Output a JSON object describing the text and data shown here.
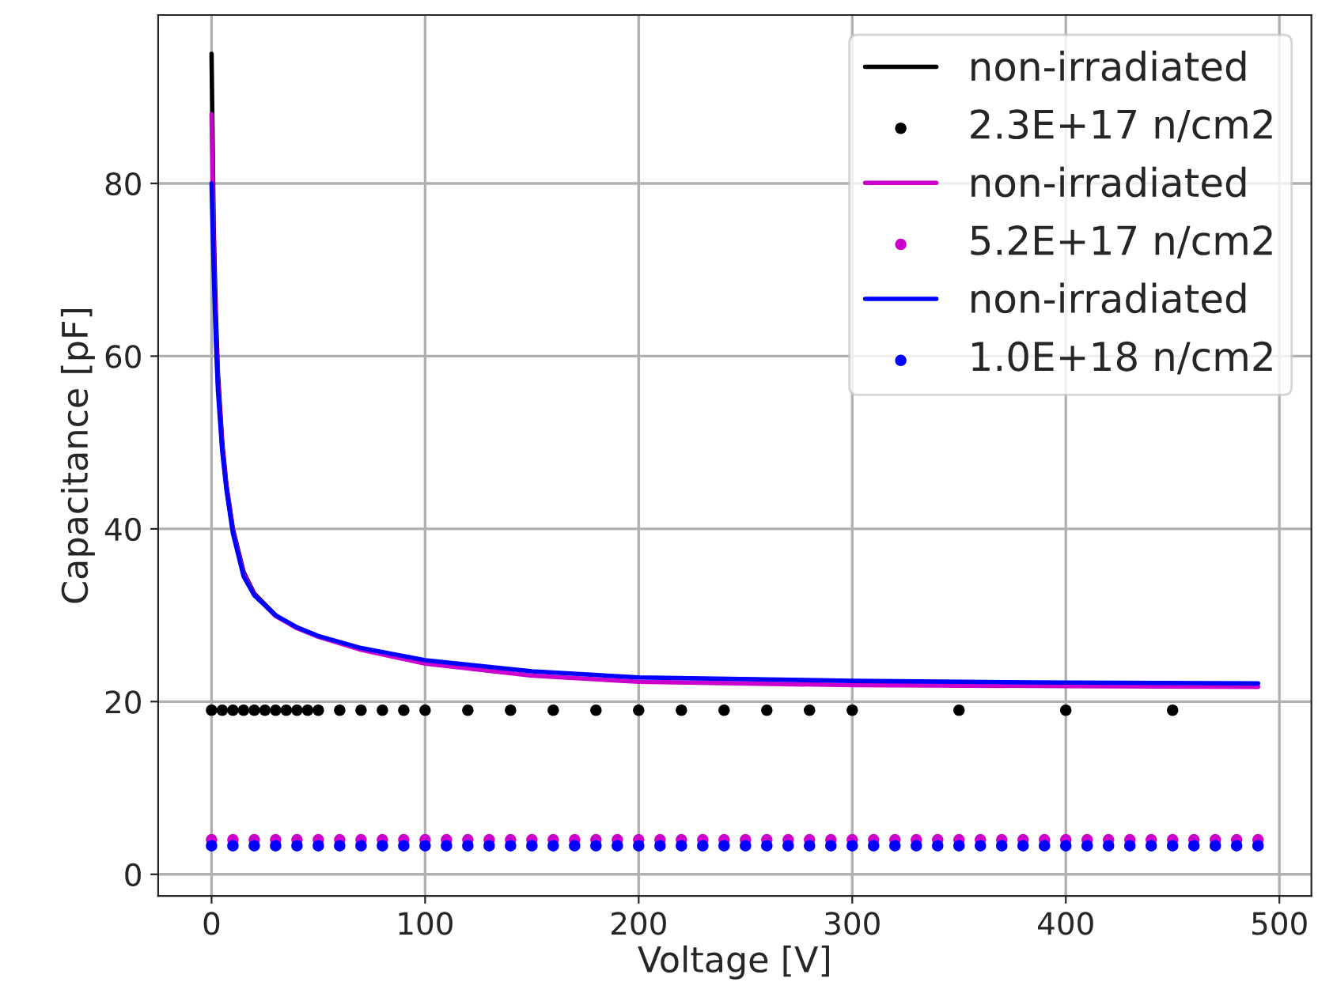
{
  "chart_data": {
    "type": "line",
    "xlabel": "Voltage [V]",
    "ylabel": "Capacitance [pF]",
    "xlim": [
      -25,
      515
    ],
    "ylim": [
      -2.5,
      99.5
    ],
    "xticks": [
      0,
      100,
      200,
      300,
      400,
      500
    ],
    "yticks": [
      0,
      20,
      40,
      60,
      80
    ],
    "grid": true,
    "legend": "top right",
    "series": [
      {
        "name": "non-irradiated",
        "color": "#000000",
        "x": [
          0,
          1,
          2,
          3,
          5,
          7,
          10,
          15,
          20,
          30
        ],
        "values": [
          95,
          75,
          65,
          58,
          50,
          45,
          40,
          35,
          32.5,
          30
        ]
      },
      {
        "name": "2.3E+17 n/cm2",
        "type": "scatter",
        "marker": "circle",
        "color": "#000000",
        "x": [
          0,
          5,
          10,
          15,
          20,
          25,
          30,
          35,
          40,
          45,
          50,
          60,
          70,
          80,
          90,
          100,
          120,
          140,
          160,
          180,
          200,
          220,
          240,
          260,
          280,
          300,
          350,
          400,
          450
        ],
        "values": [
          19,
          19,
          19,
          19,
          19,
          19,
          19,
          19,
          19,
          19,
          19,
          19,
          19,
          19,
          19,
          19,
          19,
          19,
          19,
          19,
          19,
          19,
          19,
          19,
          19,
          19,
          19,
          19,
          19
        ]
      },
      {
        "name": "non-irradiated",
        "color": "#cc00cc",
        "x": [
          0,
          1,
          2,
          3,
          5,
          7,
          10,
          15,
          20,
          30,
          40,
          50,
          70,
          100,
          150,
          200,
          300,
          400,
          490
        ],
        "values": [
          88,
          72,
          63,
          57,
          49.5,
          44.8,
          39.8,
          34.8,
          32.4,
          29.9,
          28.5,
          27.5,
          26,
          24.4,
          23,
          22.3,
          21.9,
          21.8,
          21.7
        ]
      },
      {
        "name": "5.2E+17 n/cm2",
        "type": "scatter",
        "marker": "circle",
        "color": "#cc00cc",
        "x": [
          0,
          10,
          20,
          30,
          40,
          50,
          60,
          70,
          80,
          90,
          100,
          110,
          120,
          130,
          140,
          150,
          160,
          170,
          180,
          190,
          200,
          210,
          220,
          230,
          240,
          250,
          260,
          270,
          280,
          290,
          300,
          310,
          320,
          330,
          340,
          350,
          360,
          370,
          380,
          390,
          400,
          410,
          420,
          430,
          440,
          450,
          460,
          470,
          480,
          490
        ],
        "values": [
          4,
          4,
          4,
          4,
          4,
          4,
          4,
          4,
          4,
          4,
          4,
          4,
          4,
          4,
          4,
          4,
          4,
          4,
          4,
          4,
          4,
          4,
          4,
          4,
          4,
          4,
          4,
          4,
          4,
          4,
          4,
          4,
          4,
          4,
          4,
          4,
          4,
          4,
          4,
          4,
          4,
          4,
          4,
          4,
          4,
          4,
          4,
          4,
          4,
          4
        ]
      },
      {
        "name": "non-irradiated",
        "color": "#0000ff",
        "x": [
          0,
          1,
          2,
          3,
          5,
          7,
          10,
          15,
          20,
          30,
          40,
          50,
          70,
          100,
          150,
          200,
          300,
          400,
          490
        ],
        "values": [
          80,
          70,
          62,
          56,
          49,
          44.5,
          39.5,
          34.5,
          32.3,
          30,
          28.6,
          27.6,
          26.2,
          24.8,
          23.5,
          22.8,
          22.4,
          22.2,
          22.1
        ]
      },
      {
        "name": "1.0E+18 n/cm2",
        "type": "scatter",
        "marker": "circle",
        "color": "#0000ff",
        "x": [
          0,
          10,
          20,
          30,
          40,
          50,
          60,
          70,
          80,
          90,
          100,
          110,
          120,
          130,
          140,
          150,
          160,
          170,
          180,
          190,
          200,
          210,
          220,
          230,
          240,
          250,
          260,
          270,
          280,
          290,
          300,
          310,
          320,
          330,
          340,
          350,
          360,
          370,
          380,
          390,
          400,
          410,
          420,
          430,
          440,
          450,
          460,
          470,
          480,
          490
        ],
        "values": [
          3.3,
          3.3,
          3.3,
          3.3,
          3.3,
          3.3,
          3.3,
          3.3,
          3.3,
          3.3,
          3.3,
          3.3,
          3.3,
          3.3,
          3.3,
          3.3,
          3.3,
          3.3,
          3.3,
          3.3,
          3.3,
          3.3,
          3.3,
          3.3,
          3.3,
          3.3,
          3.3,
          3.3,
          3.3,
          3.3,
          3.3,
          3.3,
          3.3,
          3.3,
          3.3,
          3.3,
          3.3,
          3.3,
          3.3,
          3.3,
          3.3,
          3.3,
          3.3,
          3.3,
          3.3,
          3.3,
          3.3,
          3.3,
          3.3,
          3.3
        ]
      }
    ]
  }
}
